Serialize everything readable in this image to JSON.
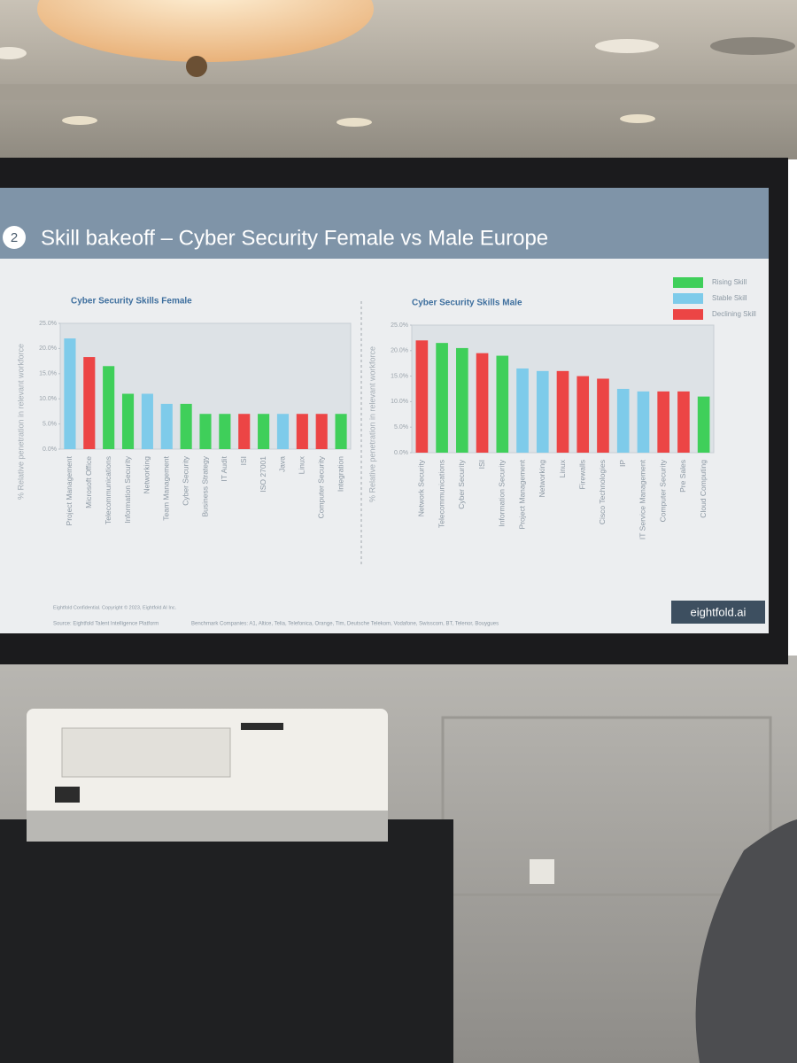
{
  "slide": {
    "number": "2",
    "title": "Skill bakeoff – Cyber Security Female vs Male Europe",
    "confidential": "Eightfold Confidential. Copyright © 2023, Eightfold AI Inc.",
    "source": "Source: Eightfold Talent Intelligence Platform",
    "benchmark": "Benchmark Companies: A1, Altice, Telia, Telefonica, Orange, Tim, Deutsche Telekom, Vodafone, Swisscom, BT, Telenor, Bouygues",
    "logo": "eightfold.ai"
  },
  "legend": [
    {
      "label": "Rising Skill",
      "color": "#3fcf5a"
    },
    {
      "label": "Stable Skill",
      "color": "#7ecbea"
    },
    {
      "label": "Declining Skill",
      "color": "#ec4545"
    }
  ],
  "chart_data": [
    {
      "type": "bar",
      "title": "Cyber Security Skills Female",
      "y_label": "% Relative penetration in relevant workforce",
      "categories": [
        "Project Management",
        "Microsoft Office",
        "Telecommunications",
        "Information Security",
        "Networking",
        "Team Management",
        "Cyber Security",
        "Business Strategy",
        "IT Audit",
        "ISI",
        "ISO 27001",
        "Java",
        "Linux",
        "Computer Security",
        "Integration"
      ],
      "values": [
        22,
        18.3,
        16.5,
        11,
        11,
        9,
        9,
        7,
        7,
        7,
        7,
        7,
        7,
        7,
        7
      ],
      "colors": [
        "#7ecbea",
        "#ec4545",
        "#3fcf5a",
        "#3fcf5a",
        "#7ecbea",
        "#7ecbea",
        "#3fcf5a",
        "#3fcf5a",
        "#3fcf5a",
        "#ec4545",
        "#3fcf5a",
        "#7ecbea",
        "#ec4545",
        "#ec4545",
        "#3fcf5a"
      ],
      "ylim": [
        0,
        25
      ],
      "yticks": [
        {
          "value": 0,
          "label": "0.0%"
        },
        {
          "value": 5,
          "label": "5.0%"
        },
        {
          "value": 10,
          "label": "10.0%"
        },
        {
          "value": 15,
          "label": "15.0%"
        },
        {
          "value": 20,
          "label": "20.0%"
        },
        {
          "value": 25,
          "label": "25.0%"
        }
      ],
      "grid": false
    },
    {
      "type": "bar",
      "title": "Cyber Security Skills Male",
      "y_label": "% Relative penetration in relevant workforce",
      "categories": [
        "Network Security",
        "Telecommunications",
        "Cyber Security",
        "ISI",
        "Information Security",
        "Project Management",
        "Networking",
        "Linux",
        "Firewalls",
        "Cisco Technologies",
        "IP",
        "IT Service Management",
        "Computer Security",
        "Pre Sales",
        "Cloud Computing"
      ],
      "values": [
        22,
        21.5,
        20.5,
        19.5,
        19,
        16.5,
        16,
        16,
        15,
        14.5,
        12.5,
        12,
        12,
        12,
        11
      ],
      "colors": [
        "#ec4545",
        "#3fcf5a",
        "#3fcf5a",
        "#ec4545",
        "#3fcf5a",
        "#7ecbea",
        "#7ecbea",
        "#ec4545",
        "#ec4545",
        "#ec4545",
        "#7ecbea",
        "#7ecbea",
        "#ec4545",
        "#ec4545",
        "#3fcf5a"
      ],
      "ylim": [
        0,
        25
      ],
      "yticks": [
        {
          "value": 0,
          "label": "0.0%"
        },
        {
          "value": 5,
          "label": "5.0%"
        },
        {
          "value": 10,
          "label": "10.0%"
        },
        {
          "value": 15,
          "label": "15.0%"
        },
        {
          "value": 20,
          "label": "20.0%"
        },
        {
          "value": 25,
          "label": "25.0%"
        }
      ],
      "grid": false
    }
  ]
}
